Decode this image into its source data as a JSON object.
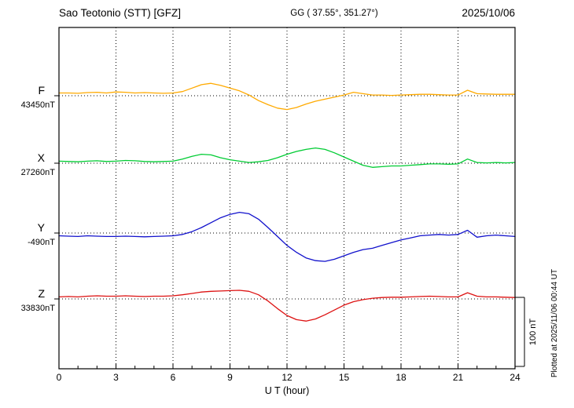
{
  "header": {
    "station": "Sao Teotonio (STT)  [GFZ]",
    "coords": "GG ( 37.55°, 351.27°)",
    "date": "2025/10/06"
  },
  "scale_bar": {
    "label": "100 nT",
    "nT": 100
  },
  "side_note": "Plotted at 2025/11/06 00:44 UT",
  "chart_data": {
    "type": "line",
    "title": "Sao Teotonio (STT) [GFZ] magnetogram 2025/10/06",
    "xlabel": "U T (hour)",
    "x_range": [
      0,
      24
    ],
    "x_step_hours": 0.5,
    "xticks": [
      0,
      3,
      6,
      9,
      12,
      15,
      18,
      21,
      24
    ],
    "grid": "dotted vertical gridlines every 3 hours; dotted horizontal baseline per component",
    "legend_position": "left-side component labels",
    "scale_bar_nT": 100,
    "series": [
      {
        "name": "F",
        "baseline_label": "43450nT",
        "baseline_nT": 43450,
        "color": "#FFAA00",
        "offsets_nT": [
          4,
          4,
          3.5,
          4.5,
          5,
          4,
          5.5,
          5,
          4,
          4.5,
          4,
          3.5,
          4,
          6,
          11,
          16,
          18,
          15,
          11,
          7,
          1,
          -7,
          -13,
          -18,
          -20,
          -17,
          -12,
          -8,
          -5,
          -2,
          1,
          5,
          3,
          1,
          1,
          0.5,
          1,
          1.5,
          2,
          2,
          1.5,
          1,
          1,
          8,
          3,
          2.5,
          2,
          2,
          2
        ]
      },
      {
        "name": "X",
        "baseline_label": "27260nT",
        "baseline_nT": 27260,
        "color": "#00CC33",
        "offsets_nT": [
          3,
          2.5,
          2,
          3,
          3.5,
          2.5,
          3,
          4,
          3.5,
          2.5,
          2,
          2.5,
          3,
          6,
          10,
          13,
          12,
          8,
          5,
          3,
          1,
          2,
          4,
          8,
          13,
          17,
          20,
          22,
          20,
          15,
          9,
          3,
          -3,
          -6,
          -5,
          -4,
          -4,
          -3,
          -2,
          -1,
          -1,
          -1.5,
          -1,
          6,
          1,
          0.5,
          1,
          0.5,
          1
        ]
      },
      {
        "name": "Y",
        "baseline_label": "-490nT",
        "baseline_nT": -490,
        "color": "#1111CC",
        "offsets_nT": [
          -4,
          -4.5,
          -5,
          -4,
          -4.5,
          -5,
          -5,
          -4.5,
          -5,
          -5.5,
          -5,
          -4.5,
          -4,
          -2,
          2,
          8,
          15,
          22,
          27,
          30,
          28,
          20,
          8,
          -5,
          -18,
          -28,
          -36,
          -40,
          -41,
          -38,
          -33,
          -28,
          -24,
          -22,
          -18,
          -14,
          -10,
          -7,
          -4,
          -3,
          -2,
          -3,
          -2,
          4,
          -6,
          -4,
          -3,
          -4,
          -5
        ]
      },
      {
        "name": "Z",
        "baseline_label": "33830nT",
        "baseline_nT": 33830,
        "color": "#DD1111",
        "offsets_nT": [
          3,
          3.5,
          3,
          4,
          4.5,
          4,
          4,
          4.5,
          4,
          3.5,
          4,
          4,
          4.5,
          6,
          8,
          10,
          11,
          11.5,
          12,
          12.5,
          11,
          6,
          -3,
          -14,
          -24,
          -30,
          -32,
          -29,
          -23,
          -16,
          -9,
          -4,
          -1,
          1,
          2,
          2.5,
          2.5,
          3,
          3.5,
          4,
          3.5,
          3,
          3,
          9,
          4,
          3,
          3,
          2.5,
          2
        ]
      }
    ]
  }
}
